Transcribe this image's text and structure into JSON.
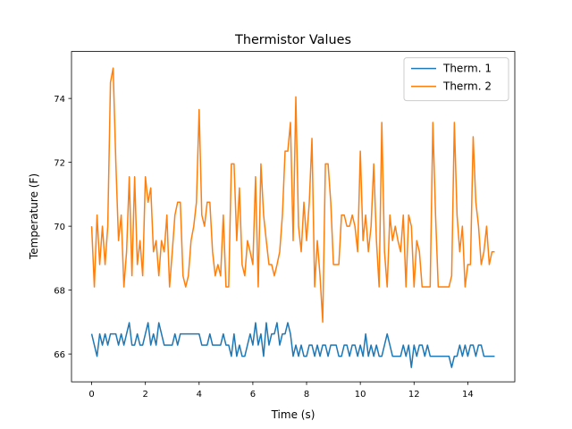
{
  "chart_data": {
    "type": "line",
    "title": "Thermistor Values",
    "x_label": "Time (s)",
    "y_label": "Temperature (F)",
    "x": [
      0,
      0.1,
      0.2,
      0.3,
      0.4,
      0.5,
      0.6,
      0.7,
      0.8,
      0.9,
      1,
      1.1,
      1.2,
      1.3,
      1.4,
      1.5,
      1.6,
      1.7,
      1.8,
      1.9,
      2,
      2.1,
      2.2,
      2.3,
      2.4,
      2.5,
      2.6,
      2.7,
      2.8,
      2.9,
      3,
      3.1,
      3.2,
      3.3,
      3.4,
      3.5,
      3.6,
      3.7,
      3.8,
      3.9,
      4,
      4.1,
      4.2,
      4.3,
      4.4,
      4.5,
      4.6,
      4.7,
      4.8,
      4.9,
      5,
      5.1,
      5.2,
      5.3,
      5.4,
      5.5,
      5.6,
      5.7,
      5.8,
      5.9,
      6,
      6.1,
      6.2,
      6.3,
      6.4,
      6.5,
      6.6,
      6.7,
      6.8,
      6.9,
      7,
      7.1,
      7.2,
      7.3,
      7.4,
      7.5,
      7.6,
      7.7,
      7.8,
      7.9,
      8,
      8.1,
      8.2,
      8.3,
      8.4,
      8.5,
      8.6,
      8.7,
      8.8,
      8.9,
      9,
      9.1,
      9.2,
      9.3,
      9.4,
      9.5,
      9.6,
      9.7,
      9.8,
      9.9,
      10,
      10.1,
      10.2,
      10.3,
      10.4,
      10.5,
      10.6,
      10.7,
      10.8,
      10.9,
      11,
      11.1,
      11.2,
      11.3,
      11.4,
      11.5,
      11.6,
      11.7,
      11.8,
      11.9,
      12,
      12.1,
      12.2,
      12.3,
      12.4,
      12.5,
      12.6,
      12.7,
      12.8,
      12.9,
      13,
      13.1,
      13.2,
      13.3,
      13.4,
      13.5,
      13.6,
      13.7,
      13.8,
      13.9,
      14,
      14.1,
      14.2,
      14.3,
      14.4,
      14.5,
      14.6,
      14.7,
      14.8,
      14.9,
      15
    ],
    "series": [
      {
        "name": "Therm. 1",
        "color": "#1f77b4",
        "values": [
          66.63,
          66.28,
          65.93,
          66.63,
          66.28,
          66.63,
          66.28,
          66.63,
          66.63,
          66.63,
          66.28,
          66.63,
          66.28,
          66.63,
          66.98,
          66.28,
          66.28,
          66.63,
          66.28,
          66.28,
          66.63,
          66.98,
          66.28,
          66.63,
          66.28,
          66.98,
          66.63,
          66.28,
          66.28,
          66.28,
          66.28,
          66.63,
          66.28,
          66.63,
          66.63,
          66.63,
          66.63,
          66.63,
          66.63,
          66.63,
          66.63,
          66.28,
          66.28,
          66.28,
          66.63,
          66.28,
          66.28,
          66.28,
          66.28,
          66.63,
          66.28,
          66.28,
          65.93,
          66.63,
          65.93,
          66.28,
          65.93,
          65.93,
          66.28,
          66.63,
          66.28,
          66.98,
          66.28,
          66.63,
          65.93,
          66.98,
          66.28,
          66.63,
          66.63,
          66.98,
          66.28,
          66.63,
          66.63,
          66.98,
          66.63,
          65.93,
          66.28,
          65.93,
          66.28,
          65.93,
          65.93,
          66.28,
          66.28,
          65.93,
          66.28,
          65.93,
          66.28,
          66.28,
          65.93,
          66.28,
          66.28,
          66.28,
          65.93,
          65.93,
          66.28,
          66.28,
          65.93,
          66.28,
          66.28,
          65.93,
          66.28,
          65.93,
          66.63,
          65.93,
          66.28,
          65.93,
          66.28,
          65.93,
          65.93,
          66.28,
          66.63,
          66.28,
          65.93,
          65.93,
          65.93,
          65.93,
          66.28,
          65.93,
          66.28,
          65.58,
          66.28,
          65.93,
          66.28,
          66.28,
          65.93,
          66.28,
          65.93,
          65.93,
          65.93,
          65.93,
          65.93,
          65.93,
          65.93,
          65.93,
          65.58,
          65.93,
          65.93,
          66.28,
          65.93,
          66.28,
          65.93,
          66.28,
          66.28,
          65.93,
          66.28,
          66.28,
          65.93,
          65.93,
          65.93,
          65.93,
          65.93
        ]
      },
      {
        "name": "Therm. 2",
        "color": "#ff7f0e",
        "values": [
          70.0,
          68.1,
          70.35,
          68.8,
          70.0,
          68.8,
          70.0,
          74.5,
          74.95,
          72.0,
          69.55,
          70.35,
          68.1,
          69.2,
          71.55,
          68.45,
          71.55,
          68.8,
          69.55,
          68.45,
          71.55,
          70.75,
          71.2,
          69.2,
          69.55,
          68.45,
          69.55,
          69.2,
          70.35,
          68.1,
          69.2,
          70.35,
          70.75,
          70.75,
          68.45,
          68.1,
          68.45,
          69.55,
          70.0,
          70.75,
          73.65,
          70.35,
          70.0,
          70.75,
          70.75,
          69.2,
          68.45,
          68.8,
          68.45,
          70.35,
          68.1,
          68.1,
          71.95,
          71.95,
          69.55,
          71.2,
          68.8,
          68.45,
          69.55,
          69.2,
          68.8,
          71.55,
          68.1,
          71.95,
          70.35,
          69.55,
          68.8,
          68.8,
          68.45,
          68.8,
          69.2,
          70.35,
          72.35,
          72.35,
          73.25,
          69.55,
          74.05,
          70.0,
          69.2,
          70.75,
          69.55,
          70.75,
          72.75,
          68.1,
          69.55,
          68.45,
          67.0,
          71.95,
          71.95,
          70.75,
          68.8,
          68.8,
          68.8,
          70.35,
          70.35,
          70.0,
          70.0,
          70.35,
          70.0,
          69.2,
          72.35,
          69.55,
          70.35,
          69.2,
          70.0,
          71.95,
          69.55,
          68.1,
          73.25,
          69.2,
          68.1,
          70.35,
          69.55,
          70.0,
          69.55,
          69.2,
          70.35,
          68.1,
          70.35,
          70.0,
          68.1,
          69.55,
          69.2,
          68.1,
          68.1,
          68.1,
          68.1,
          73.25,
          70.35,
          68.1,
          68.1,
          68.1,
          68.1,
          68.1,
          68.45,
          73.25,
          70.35,
          69.2,
          70.0,
          68.1,
          68.8,
          68.8,
          72.8,
          70.75,
          70.0,
          68.8,
          69.2,
          70.0,
          68.8,
          69.2,
          69.2
        ]
      }
    ],
    "xlim": [
      -0.75,
      15.75
    ],
    "ylim": [
      65.13,
      75.47
    ],
    "xticks": [
      0,
      2,
      4,
      6,
      8,
      10,
      12,
      14
    ],
    "yticks": [
      66,
      68,
      70,
      72,
      74
    ],
    "legend": "upper right"
  }
}
